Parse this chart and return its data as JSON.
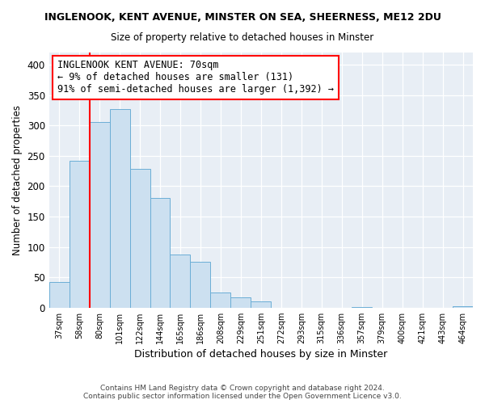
{
  "title": "INGLENOOK, KENT AVENUE, MINSTER ON SEA, SHEERNESS, ME12 2DU",
  "subtitle": "Size of property relative to detached houses in Minster",
  "xlabel": "Distribution of detached houses by size in Minster",
  "ylabel": "Number of detached properties",
  "bar_labels": [
    "37sqm",
    "58sqm",
    "80sqm",
    "101sqm",
    "122sqm",
    "144sqm",
    "165sqm",
    "186sqm",
    "208sqm",
    "229sqm",
    "251sqm",
    "272sqm",
    "293sqm",
    "315sqm",
    "336sqm",
    "357sqm",
    "379sqm",
    "400sqm",
    "421sqm",
    "443sqm",
    "464sqm"
  ],
  "bar_values": [
    42,
    242,
    305,
    327,
    228,
    180,
    88,
    75,
    25,
    17,
    10,
    0,
    0,
    0,
    0,
    1,
    0,
    0,
    0,
    0,
    2
  ],
  "bar_color": "#cce0f0",
  "bar_edge_color": "#6baed6",
  "vline_color": "red",
  "annotation_title": "INGLENOOK KENT AVENUE: 70sqm",
  "annotation_line1": "← 9% of detached houses are smaller (131)",
  "annotation_line2": "91% of semi-detached houses are larger (1,392) →",
  "annotation_box_color": "white",
  "annotation_box_edge": "red",
  "footer_line1": "Contains HM Land Registry data © Crown copyright and database right 2024.",
  "footer_line2": "Contains public sector information licensed under the Open Government Licence v3.0.",
  "ylim": [
    0,
    420
  ],
  "background_color": "#ffffff",
  "plot_bg_color": "#e8eef5"
}
